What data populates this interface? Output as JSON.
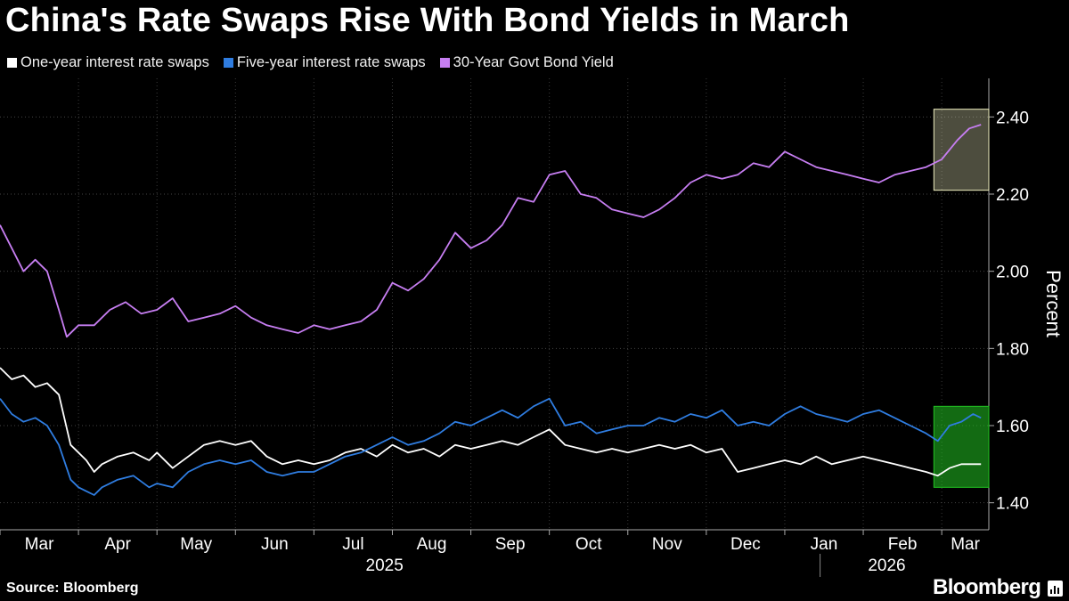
{
  "title": "China's Rate Swaps Rise With Bond Yields in March",
  "source": "Source: Bloomberg",
  "brand": "Bloomberg",
  "brand_badge_icon": "bar-chart-icon",
  "legend": [
    {
      "label": "One-year interest rate swaps",
      "color": "#ffffff"
    },
    {
      "label": "Five-year interest rate swaps",
      "color": "#2f7de1"
    },
    {
      "label": "30-Year Govt Bond Yield",
      "color": "#c77ef2"
    }
  ],
  "chart_data": {
    "type": "line",
    "title": "China's Rate Swaps Rise With Bond Yields in March",
    "xlabel": "",
    "ylabel": "Percent",
    "ylim": [
      1.33,
      2.5
    ],
    "yticks": [
      "1.40",
      "1.60",
      "1.80",
      "2.00",
      "2.20",
      "2.40"
    ],
    "ytick_values": [
      1.4,
      1.6,
      1.8,
      2.0,
      2.2,
      2.4
    ],
    "month_labels": [
      "Mar",
      "Apr",
      "May",
      "Jun",
      "Jul",
      "Aug",
      "Sep",
      "Oct",
      "Nov",
      "Dec",
      "Jan",
      "Feb",
      "Mar"
    ],
    "year_labels": [
      "2025",
      "2026"
    ],
    "x_unit": "months since 2025-03-01",
    "x_range": [
      0,
      12.6
    ],
    "month_centers": [
      0.5,
      1.5,
      2.5,
      3.5,
      4.5,
      5.5,
      6.5,
      7.5,
      8.5,
      9.5,
      10.5,
      11.5,
      12.3
    ],
    "year_positions": [
      4.9,
      11.3
    ],
    "highlight_boxes": [
      {
        "series": "30-Year Govt Bond Yield",
        "x_range": [
          11.9,
          12.6
        ],
        "y_range": [
          2.21,
          2.42
        ],
        "color": "#f0f0c0"
      },
      {
        "series": "Five-year interest rate swaps",
        "x_range": [
          11.9,
          12.6
        ],
        "y_range": [
          1.44,
          1.65
        ],
        "color": "#22c322"
      }
    ],
    "series": [
      {
        "name": "One-year interest rate swaps",
        "color": "#ffffff",
        "points": [
          [
            0.0,
            1.75
          ],
          [
            0.15,
            1.72
          ],
          [
            0.3,
            1.73
          ],
          [
            0.45,
            1.7
          ],
          [
            0.6,
            1.71
          ],
          [
            0.75,
            1.68
          ],
          [
            0.9,
            1.55
          ],
          [
            1.0,
            1.53
          ],
          [
            1.1,
            1.51
          ],
          [
            1.2,
            1.48
          ],
          [
            1.3,
            1.5
          ],
          [
            1.5,
            1.52
          ],
          [
            1.7,
            1.53
          ],
          [
            1.9,
            1.51
          ],
          [
            2.0,
            1.53
          ],
          [
            2.2,
            1.49
          ],
          [
            2.4,
            1.52
          ],
          [
            2.6,
            1.55
          ],
          [
            2.8,
            1.56
          ],
          [
            3.0,
            1.55
          ],
          [
            3.2,
            1.56
          ],
          [
            3.4,
            1.52
          ],
          [
            3.6,
            1.5
          ],
          [
            3.8,
            1.51
          ],
          [
            4.0,
            1.5
          ],
          [
            4.2,
            1.51
          ],
          [
            4.4,
            1.53
          ],
          [
            4.6,
            1.54
          ],
          [
            4.8,
            1.52
          ],
          [
            5.0,
            1.55
          ],
          [
            5.2,
            1.53
          ],
          [
            5.4,
            1.54
          ],
          [
            5.6,
            1.52
          ],
          [
            5.8,
            1.55
          ],
          [
            6.0,
            1.54
          ],
          [
            6.2,
            1.55
          ],
          [
            6.4,
            1.56
          ],
          [
            6.6,
            1.55
          ],
          [
            6.8,
            1.57
          ],
          [
            7.0,
            1.59
          ],
          [
            7.2,
            1.55
          ],
          [
            7.4,
            1.54
          ],
          [
            7.6,
            1.53
          ],
          [
            7.8,
            1.54
          ],
          [
            8.0,
            1.53
          ],
          [
            8.2,
            1.54
          ],
          [
            8.4,
            1.55
          ],
          [
            8.6,
            1.54
          ],
          [
            8.8,
            1.55
          ],
          [
            9.0,
            1.53
          ],
          [
            9.2,
            1.54
          ],
          [
            9.4,
            1.48
          ],
          [
            9.6,
            1.49
          ],
          [
            9.8,
            1.5
          ],
          [
            10.0,
            1.51
          ],
          [
            10.2,
            1.5
          ],
          [
            10.4,
            1.52
          ],
          [
            10.6,
            1.5
          ],
          [
            10.8,
            1.51
          ],
          [
            11.0,
            1.52
          ],
          [
            11.2,
            1.51
          ],
          [
            11.4,
            1.5
          ],
          [
            11.6,
            1.49
          ],
          [
            11.8,
            1.48
          ],
          [
            11.95,
            1.47
          ],
          [
            12.1,
            1.49
          ],
          [
            12.25,
            1.5
          ],
          [
            12.4,
            1.5
          ],
          [
            12.5,
            1.5
          ]
        ]
      },
      {
        "name": "Five-year interest rate swaps",
        "color": "#2f7de1",
        "points": [
          [
            0.0,
            1.67
          ],
          [
            0.15,
            1.63
          ],
          [
            0.3,
            1.61
          ],
          [
            0.45,
            1.62
          ],
          [
            0.6,
            1.6
          ],
          [
            0.75,
            1.55
          ],
          [
            0.9,
            1.46
          ],
          [
            1.0,
            1.44
          ],
          [
            1.1,
            1.43
          ],
          [
            1.2,
            1.42
          ],
          [
            1.3,
            1.44
          ],
          [
            1.5,
            1.46
          ],
          [
            1.7,
            1.47
          ],
          [
            1.9,
            1.44
          ],
          [
            2.0,
            1.45
          ],
          [
            2.2,
            1.44
          ],
          [
            2.4,
            1.48
          ],
          [
            2.6,
            1.5
          ],
          [
            2.8,
            1.51
          ],
          [
            3.0,
            1.5
          ],
          [
            3.2,
            1.51
          ],
          [
            3.4,
            1.48
          ],
          [
            3.6,
            1.47
          ],
          [
            3.8,
            1.48
          ],
          [
            4.0,
            1.48
          ],
          [
            4.2,
            1.5
          ],
          [
            4.4,
            1.52
          ],
          [
            4.6,
            1.53
          ],
          [
            4.8,
            1.55
          ],
          [
            5.0,
            1.57
          ],
          [
            5.2,
            1.55
          ],
          [
            5.4,
            1.56
          ],
          [
            5.6,
            1.58
          ],
          [
            5.8,
            1.61
          ],
          [
            6.0,
            1.6
          ],
          [
            6.2,
            1.62
          ],
          [
            6.4,
            1.64
          ],
          [
            6.6,
            1.62
          ],
          [
            6.8,
            1.65
          ],
          [
            7.0,
            1.67
          ],
          [
            7.2,
            1.6
          ],
          [
            7.4,
            1.61
          ],
          [
            7.6,
            1.58
          ],
          [
            7.8,
            1.59
          ],
          [
            8.0,
            1.6
          ],
          [
            8.2,
            1.6
          ],
          [
            8.4,
            1.62
          ],
          [
            8.6,
            1.61
          ],
          [
            8.8,
            1.63
          ],
          [
            9.0,
            1.62
          ],
          [
            9.2,
            1.64
          ],
          [
            9.4,
            1.6
          ],
          [
            9.6,
            1.61
          ],
          [
            9.8,
            1.6
          ],
          [
            10.0,
            1.63
          ],
          [
            10.2,
            1.65
          ],
          [
            10.4,
            1.63
          ],
          [
            10.6,
            1.62
          ],
          [
            10.8,
            1.61
          ],
          [
            11.0,
            1.63
          ],
          [
            11.2,
            1.64
          ],
          [
            11.4,
            1.62
          ],
          [
            11.6,
            1.6
          ],
          [
            11.8,
            1.58
          ],
          [
            11.95,
            1.56
          ],
          [
            12.1,
            1.6
          ],
          [
            12.25,
            1.61
          ],
          [
            12.4,
            1.63
          ],
          [
            12.5,
            1.62
          ]
        ]
      },
      {
        "name": "30-Year Govt Bond Yield",
        "color": "#c77ef2",
        "points": [
          [
            0.0,
            2.12
          ],
          [
            0.15,
            2.06
          ],
          [
            0.3,
            2.0
          ],
          [
            0.45,
            2.03
          ],
          [
            0.6,
            2.0
          ],
          [
            0.75,
            1.9
          ],
          [
            0.85,
            1.83
          ],
          [
            1.0,
            1.86
          ],
          [
            1.2,
            1.86
          ],
          [
            1.4,
            1.9
          ],
          [
            1.6,
            1.92
          ],
          [
            1.8,
            1.89
          ],
          [
            2.0,
            1.9
          ],
          [
            2.2,
            1.93
          ],
          [
            2.4,
            1.87
          ],
          [
            2.6,
            1.88
          ],
          [
            2.8,
            1.89
          ],
          [
            3.0,
            1.91
          ],
          [
            3.2,
            1.88
          ],
          [
            3.4,
            1.86
          ],
          [
            3.6,
            1.85
          ],
          [
            3.8,
            1.84
          ],
          [
            4.0,
            1.86
          ],
          [
            4.2,
            1.85
          ],
          [
            4.4,
            1.86
          ],
          [
            4.6,
            1.87
          ],
          [
            4.8,
            1.9
          ],
          [
            5.0,
            1.97
          ],
          [
            5.2,
            1.95
          ],
          [
            5.4,
            1.98
          ],
          [
            5.6,
            2.03
          ],
          [
            5.8,
            2.1
          ],
          [
            6.0,
            2.06
          ],
          [
            6.2,
            2.08
          ],
          [
            6.4,
            2.12
          ],
          [
            6.6,
            2.19
          ],
          [
            6.8,
            2.18
          ],
          [
            7.0,
            2.25
          ],
          [
            7.2,
            2.26
          ],
          [
            7.4,
            2.2
          ],
          [
            7.6,
            2.19
          ],
          [
            7.8,
            2.16
          ],
          [
            8.0,
            2.15
          ],
          [
            8.2,
            2.14
          ],
          [
            8.4,
            2.16
          ],
          [
            8.6,
            2.19
          ],
          [
            8.8,
            2.23
          ],
          [
            9.0,
            2.25
          ],
          [
            9.2,
            2.24
          ],
          [
            9.4,
            2.25
          ],
          [
            9.6,
            2.28
          ],
          [
            9.8,
            2.27
          ],
          [
            10.0,
            2.31
          ],
          [
            10.2,
            2.29
          ],
          [
            10.4,
            2.27
          ],
          [
            10.6,
            2.26
          ],
          [
            10.8,
            2.25
          ],
          [
            11.0,
            2.24
          ],
          [
            11.2,
            2.23
          ],
          [
            11.4,
            2.25
          ],
          [
            11.6,
            2.26
          ],
          [
            11.8,
            2.27
          ],
          [
            12.0,
            2.29
          ],
          [
            12.2,
            2.34
          ],
          [
            12.35,
            2.37
          ],
          [
            12.5,
            2.38
          ]
        ]
      }
    ]
  }
}
